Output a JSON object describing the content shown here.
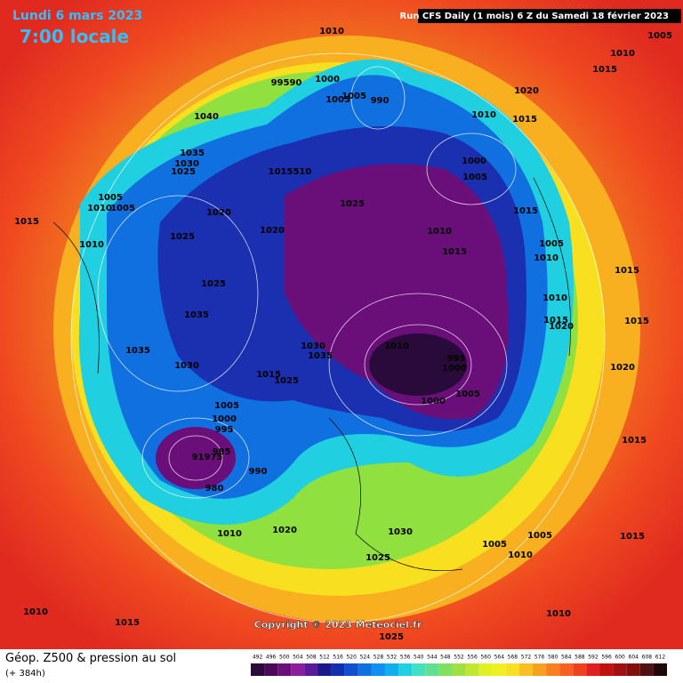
{
  "header": {
    "date": "Lundi 6 mars 2023",
    "time": "7:00 locale",
    "run": "Run CFS Daily (1 mois) 6 Z du Samedi 18 février 2023"
  },
  "copyright": "Copyright © 2023 Meteociel.fr",
  "footer": {
    "title": "Géop. Z500 & pression au sol",
    "lead": "(+ 384h)"
  },
  "isobar_labels": [
    "1010",
    "1005",
    "1010",
    "1015",
    "99590",
    "1000",
    "1005",
    "1005",
    "990",
    "1020",
    "1010",
    "1015",
    "1040",
    "1035",
    "1030",
    "1025",
    "1015510",
    "1000",
    "1005",
    "1025",
    "1005",
    "1010",
    "1005",
    "1020",
    "1015",
    "1015",
    "1010",
    "1015",
    "1020",
    "1025",
    "1010",
    "1005",
    "1010",
    "1015",
    "1025",
    "1010",
    "1035",
    "1015",
    "1020",
    "1015",
    "1035",
    "1030",
    "1035",
    "1010",
    "995",
    "1000",
    "1020",
    "1030",
    "1015",
    "1025",
    "1005",
    "1000",
    "1005",
    "1000",
    "995",
    "1015",
    "985",
    "91975",
    "990",
    "980",
    "1010",
    "1020",
    "1030",
    "1005",
    "1005",
    "1015",
    "1010",
    "1025",
    "1010",
    "1015",
    "1010",
    "1025"
  ],
  "legend": {
    "ticks": [
      492,
      496,
      500,
      504,
      508,
      512,
      516,
      520,
      524,
      528,
      532,
      536,
      540,
      544,
      548,
      552,
      556,
      560,
      564,
      568,
      572,
      576,
      580,
      584,
      588,
      592,
      596,
      600,
      604,
      608,
      612
    ],
    "colors": [
      "#2a0a3a",
      "#4a0a5a",
      "#6a0f7a",
      "#8a1f9a",
      "#5a1a9a",
      "#1a1a8a",
      "#1030b0",
      "#1050d0",
      "#1070e0",
      "#1090f0",
      "#10b0f0",
      "#20d0e0",
      "#40e0c0",
      "#60e090",
      "#80e060",
      "#a0e040",
      "#c0e830",
      "#e0f020",
      "#f0f020",
      "#f8e020",
      "#f8c020",
      "#f8a020",
      "#f88020",
      "#f86020",
      "#f04020",
      "#e02020",
      "#c01010",
      "#a01010",
      "#801010",
      "#501010",
      "#200808"
    ]
  }
}
